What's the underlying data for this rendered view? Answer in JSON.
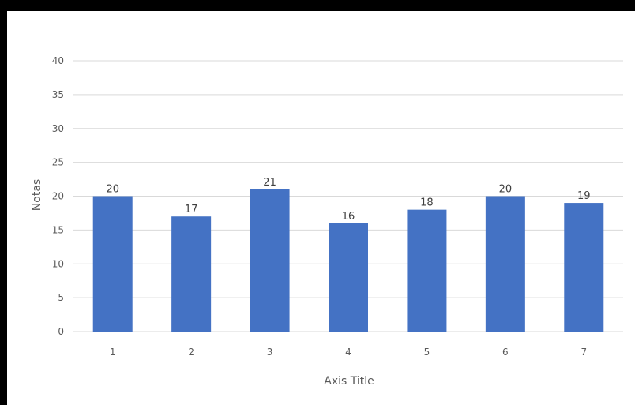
{
  "chart_data": {
    "type": "bar",
    "categories": [
      "1",
      "2",
      "3",
      "4",
      "5",
      "6",
      "7"
    ],
    "values": [
      20,
      17,
      21,
      16,
      18,
      20,
      19
    ],
    "data_labels": [
      "20",
      "17",
      "21",
      "16",
      "18",
      "20",
      "19"
    ],
    "xlabel": "Axis Title",
    "ylabel": "Notas",
    "ylim": [
      0,
      40
    ],
    "yticks": [
      "0",
      "5",
      "10",
      "15",
      "20",
      "25",
      "30",
      "35",
      "40"
    ],
    "grid": true,
    "legend": "none",
    "bar_color": "#4472C4",
    "grid_color": "#D9D9D9"
  }
}
